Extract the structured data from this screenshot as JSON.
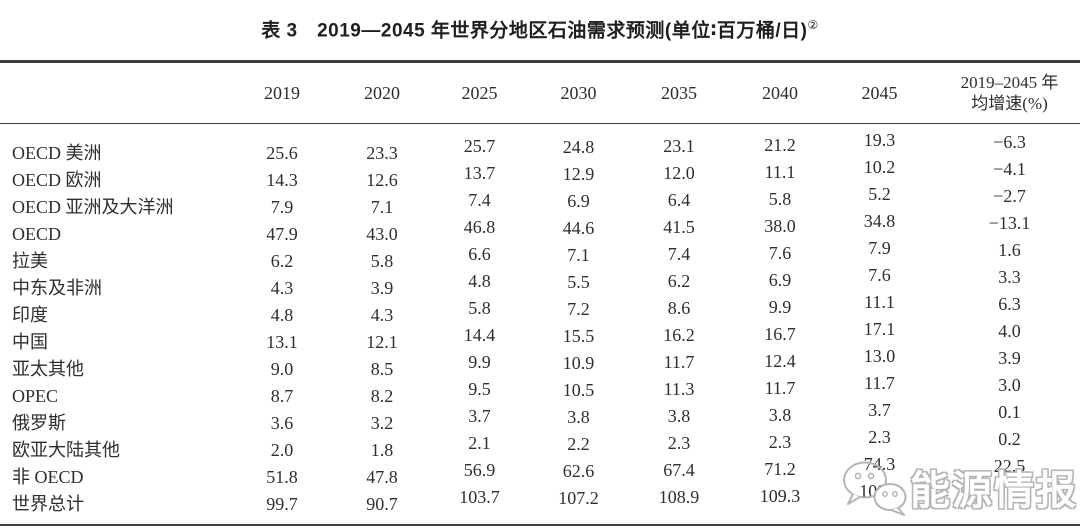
{
  "title": {
    "text": "表 3　2019—2045 年世界分地区石油需求预测(单位∶百万桶/日)",
    "note": "②"
  },
  "table": {
    "region_header": "",
    "columns": [
      "2019",
      "2020",
      "2025",
      "2030",
      "2035",
      "2040",
      "2045"
    ],
    "growth_header_lines": [
      "2019–2045 年",
      "均增速(%)"
    ],
    "rows": [
      {
        "label": "OECD 美洲",
        "values": [
          "25.6",
          "23.3",
          "25.7",
          "24.8",
          "23.1",
          "21.2",
          "19.3",
          "−6.3"
        ]
      },
      {
        "label": "OECD 欧洲",
        "values": [
          "14.3",
          "12.6",
          "13.7",
          "12.9",
          "12.0",
          "11.1",
          "10.2",
          "−4.1"
        ]
      },
      {
        "label": "OECD 亚洲及大洋洲",
        "values": [
          "7.9",
          "7.1",
          "7.4",
          "6.9",
          "6.4",
          "5.8",
          "5.2",
          "−2.7"
        ]
      },
      {
        "label": "OECD",
        "values": [
          "47.9",
          "43.0",
          "46.8",
          "44.6",
          "41.5",
          "38.0",
          "34.8",
          "−13.1"
        ]
      },
      {
        "label": "拉美",
        "values": [
          "6.2",
          "5.8",
          "6.6",
          "7.1",
          "7.4",
          "7.6",
          "7.9",
          "1.6"
        ]
      },
      {
        "label": "中东及非洲",
        "values": [
          "4.3",
          "3.9",
          "4.8",
          "5.5",
          "6.2",
          "6.9",
          "7.6",
          "3.3"
        ]
      },
      {
        "label": "印度",
        "values": [
          "4.8",
          "4.3",
          "5.8",
          "7.2",
          "8.6",
          "9.9",
          "11.1",
          "6.3"
        ]
      },
      {
        "label": "中国",
        "values": [
          "13.1",
          "12.1",
          "14.4",
          "15.5",
          "16.2",
          "16.7",
          "17.1",
          "4.0"
        ]
      },
      {
        "label": "亚太其他",
        "values": [
          "9.0",
          "8.5",
          "9.9",
          "10.9",
          "11.7",
          "12.4",
          "13.0",
          "3.9"
        ]
      },
      {
        "label": "OPEC",
        "values": [
          "8.7",
          "8.2",
          "9.5",
          "10.5",
          "11.3",
          "11.7",
          "11.7",
          "3.0"
        ]
      },
      {
        "label": "俄罗斯",
        "values": [
          "3.6",
          "3.2",
          "3.7",
          "3.8",
          "3.8",
          "3.8",
          "3.7",
          "0.1"
        ]
      },
      {
        "label": "欧亚大陆其他",
        "values": [
          "2.0",
          "1.8",
          "2.1",
          "2.2",
          "2.3",
          "2.3",
          "2.3",
          "0.2"
        ]
      },
      {
        "label": "非 OECD",
        "values": [
          "51.8",
          "47.8",
          "56.9",
          "62.6",
          "67.4",
          "71.2",
          "74.3",
          "22.5"
        ]
      },
      {
        "label": "世界总计",
        "values": [
          "99.7",
          "90.7",
          "103.7",
          "107.2",
          "108.9",
          "109.3",
          "109.1",
          ""
        ]
      }
    ]
  },
  "watermark": {
    "logo": "wechat-icon",
    "text": "能源情报",
    "color": "#b5b5b5"
  }
}
